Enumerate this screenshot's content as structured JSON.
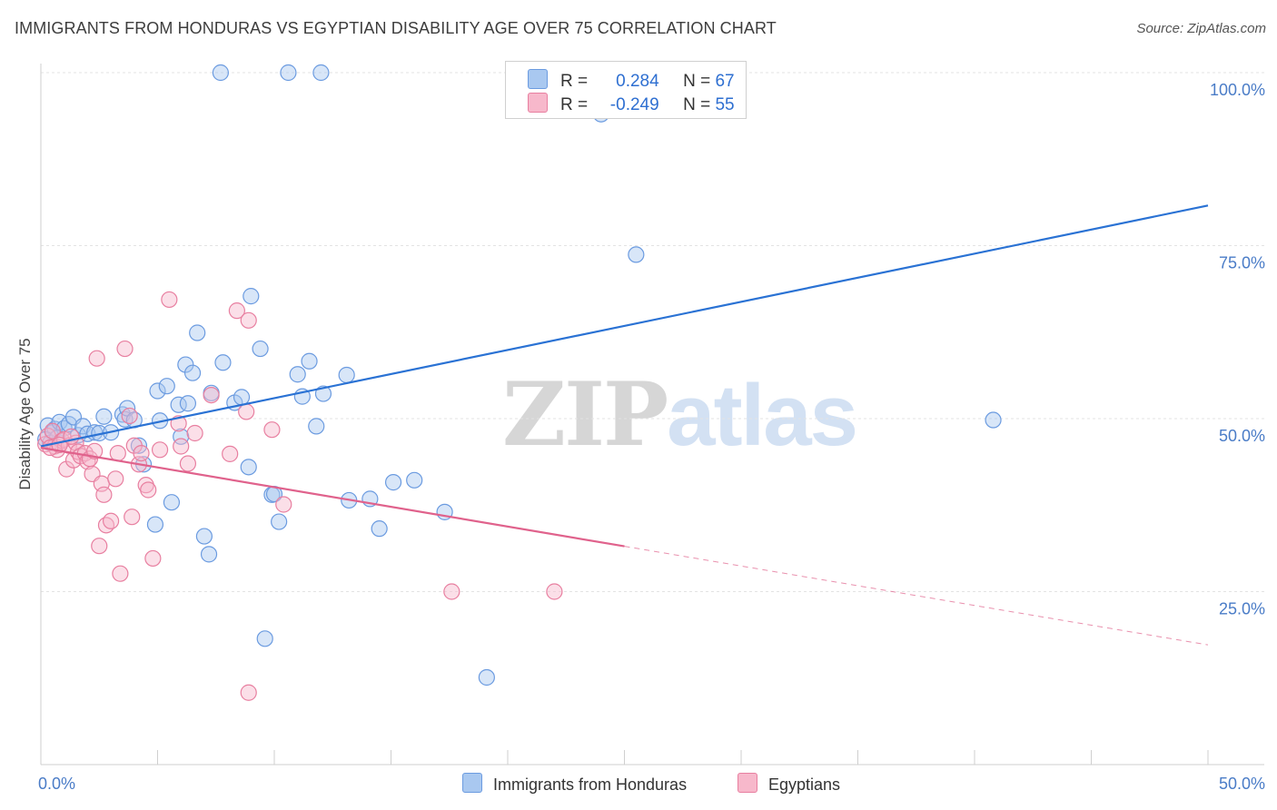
{
  "header": {
    "title": "IMMIGRANTS FROM HONDURAS VS EGYPTIAN DISABILITY AGE OVER 75 CORRELATION CHART",
    "source": "Source: ZipAtlas.com"
  },
  "watermark": {
    "zip": "ZIP",
    "atlas": "atlas"
  },
  "legend_stats": [
    {
      "r_label": "R =",
      "r_value": "0.284",
      "n_label": "N =",
      "n_value": "67",
      "color": "#a9c8f0"
    },
    {
      "r_label": "R =",
      "r_value": "-0.249",
      "n_label": "N =",
      "n_value": "55",
      "color": "#f7b8cb"
    }
  ],
  "chart_data": {
    "type": "scatter",
    "title": "IMMIGRANTS FROM HONDURAS VS EGYPTIAN DISABILITY AGE OVER 75 CORRELATION CHART",
    "xlabel": "",
    "ylabel": "Disability Age Over 75",
    "xlim": [
      0,
      50
    ],
    "ylim": [
      0,
      105
    ],
    "x_tick_labels": [
      "0.0%",
      "50.0%"
    ],
    "y_ticks": [
      25,
      50,
      75,
      100
    ],
    "y_tick_labels": [
      "25.0%",
      "50.0%",
      "75.0%",
      "100.0%"
    ],
    "grid": true,
    "legend_placement": "bottom-center",
    "series": [
      {
        "name": "Immigrants from Honduras",
        "color": "#6b9be0",
        "fill": "#a9c8f0",
        "trend": {
          "x": [
            0,
            50
          ],
          "y": [
            46.0,
            80.8
          ],
          "dashed_from": null
        },
        "points": [
          [
            0.3,
            49.0
          ],
          [
            0.5,
            48.0
          ],
          [
            0.6,
            48.5
          ],
          [
            0.8,
            49.5
          ],
          [
            1.0,
            48.6
          ],
          [
            1.2,
            49.2
          ],
          [
            1.4,
            50.2
          ],
          [
            1.6,
            47.6
          ],
          [
            1.8,
            48.9
          ],
          [
            2.0,
            47.8
          ],
          [
            2.3,
            48.0
          ],
          [
            2.5,
            47.9
          ],
          [
            2.7,
            50.3
          ],
          [
            3.0,
            48.0
          ],
          [
            3.5,
            50.6
          ],
          [
            3.6,
            49.9
          ],
          [
            3.7,
            51.5
          ],
          [
            4.0,
            49.8
          ],
          [
            4.2,
            46.1
          ],
          [
            4.4,
            43.4
          ],
          [
            4.9,
            34.7
          ],
          [
            5.0,
            54.0
          ],
          [
            5.1,
            49.7
          ],
          [
            5.4,
            54.7
          ],
          [
            5.6,
            37.9
          ],
          [
            5.9,
            52.0
          ],
          [
            6.0,
            47.4
          ],
          [
            6.2,
            57.8
          ],
          [
            6.3,
            52.2
          ],
          [
            6.5,
            56.6
          ],
          [
            6.7,
            62.4
          ],
          [
            7.0,
            33.0
          ],
          [
            7.2,
            30.4
          ],
          [
            7.3,
            53.7
          ],
          [
            7.8,
            58.1
          ],
          [
            8.3,
            52.3
          ],
          [
            8.6,
            53.1
          ],
          [
            8.9,
            43.0
          ],
          [
            9.0,
            67.7
          ],
          [
            9.4,
            60.1
          ],
          [
            9.6,
            18.2
          ],
          [
            9.9,
            39.0
          ],
          [
            10.0,
            39.1
          ],
          [
            10.2,
            35.1
          ],
          [
            11.0,
            56.4
          ],
          [
            11.2,
            53.2
          ],
          [
            11.5,
            58.3
          ],
          [
            11.8,
            48.9
          ],
          [
            12.1,
            53.6
          ],
          [
            13.1,
            56.3
          ],
          [
            13.2,
            38.2
          ],
          [
            14.1,
            38.4
          ],
          [
            14.5,
            34.1
          ],
          [
            15.1,
            40.8
          ],
          [
            16.0,
            41.1
          ],
          [
            17.3,
            36.5
          ],
          [
            19.1,
            12.6
          ],
          [
            24.0,
            94.0
          ],
          [
            25.0,
            100.0
          ],
          [
            25.5,
            73.7
          ],
          [
            40.8,
            49.8
          ],
          [
            7.7,
            100.0
          ],
          [
            10.6,
            100.0
          ],
          [
            12.0,
            100.0
          ],
          [
            0.2,
            47.0
          ],
          [
            0.4,
            46.5
          ],
          [
            0.7,
            47.2
          ]
        ]
      },
      {
        "name": "Egyptians",
        "color": "#e87fa0",
        "fill": "#f7b8cb",
        "trend": {
          "x": [
            0,
            50
          ],
          "y": [
            45.8,
            17.3
          ],
          "solid_until": 25
        },
        "points": [
          [
            0.2,
            46.3
          ],
          [
            0.3,
            47.5
          ],
          [
            0.5,
            48.2
          ],
          [
            0.6,
            46.0
          ],
          [
            0.7,
            45.5
          ],
          [
            0.9,
            46.8
          ],
          [
            1.0,
            47.0
          ],
          [
            1.1,
            42.7
          ],
          [
            1.2,
            46.1
          ],
          [
            1.4,
            44.0
          ],
          [
            1.5,
            46.5
          ],
          [
            1.6,
            45.2
          ],
          [
            1.7,
            44.6
          ],
          [
            1.9,
            45.0
          ],
          [
            2.0,
            43.8
          ],
          [
            2.1,
            44.2
          ],
          [
            2.2,
            42.0
          ],
          [
            2.3,
            45.3
          ],
          [
            2.4,
            58.7
          ],
          [
            2.5,
            31.6
          ],
          [
            2.6,
            40.6
          ],
          [
            2.7,
            39.0
          ],
          [
            2.8,
            34.6
          ],
          [
            3.0,
            35.2
          ],
          [
            3.2,
            41.3
          ],
          [
            3.3,
            45.0
          ],
          [
            3.4,
            27.6
          ],
          [
            3.6,
            60.1
          ],
          [
            3.9,
            35.8
          ],
          [
            4.0,
            46.1
          ],
          [
            4.2,
            43.4
          ],
          [
            4.3,
            45.0
          ],
          [
            4.5,
            40.4
          ],
          [
            4.6,
            39.7
          ],
          [
            4.8,
            29.8
          ],
          [
            5.1,
            45.5
          ],
          [
            5.5,
            67.2
          ],
          [
            5.9,
            49.3
          ],
          [
            6.0,
            46.0
          ],
          [
            6.3,
            43.5
          ],
          [
            6.6,
            47.9
          ],
          [
            7.3,
            53.4
          ],
          [
            8.1,
            44.9
          ],
          [
            8.4,
            65.6
          ],
          [
            8.8,
            51.0
          ],
          [
            8.9,
            10.4
          ],
          [
            8.9,
            64.2
          ],
          [
            9.9,
            48.4
          ],
          [
            10.4,
            37.6
          ],
          [
            17.6,
            25.0
          ],
          [
            22.0,
            25.0
          ],
          [
            0.4,
            45.8
          ],
          [
            0.8,
            46.2
          ],
          [
            3.8,
            50.4
          ],
          [
            1.3,
            47.4
          ]
        ]
      }
    ]
  },
  "bottom_legend": [
    {
      "label": "Immigrants from Honduras",
      "color": "#a9c8f0",
      "border": "#6b9be0"
    },
    {
      "label": "Egyptians",
      "color": "#f7b8cb",
      "border": "#e87fa0"
    }
  ]
}
